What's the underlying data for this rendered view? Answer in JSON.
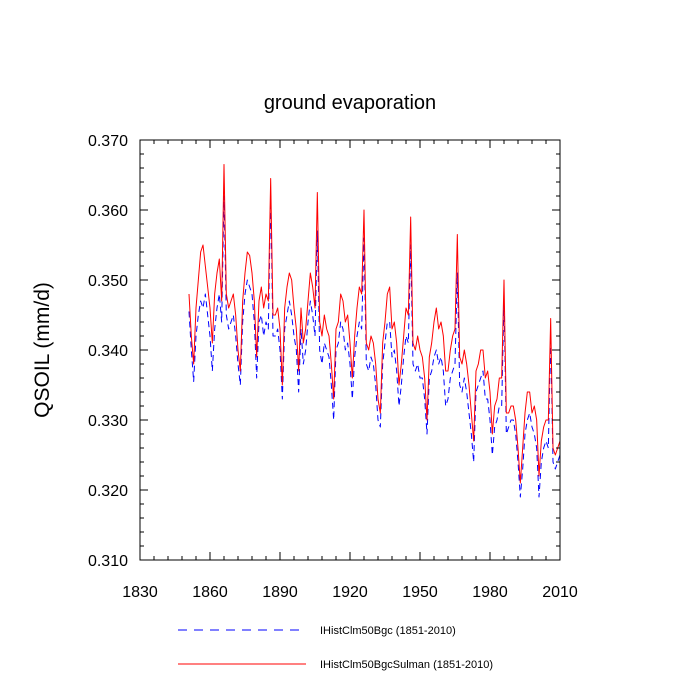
{
  "chart_data": {
    "type": "line",
    "title": "ground evaporation",
    "xlabel": "",
    "ylabel": "QSOIL  (mm/d)",
    "xlim": [
      1830,
      2010
    ],
    "ylim": [
      0.31,
      0.37
    ],
    "xticks": [
      1830,
      1860,
      1890,
      1920,
      1950,
      1980,
      2010
    ],
    "xtick_labels": [
      "1830",
      "1860",
      "1890",
      "1920",
      "1950",
      "1980",
      "2010"
    ],
    "yticks": [
      0.31,
      0.32,
      0.33,
      0.34,
      0.35,
      0.36,
      0.37
    ],
    "ytick_labels": [
      "0.310",
      "0.320",
      "0.330",
      "0.340",
      "0.350",
      "0.360",
      "0.370"
    ],
    "grid": false,
    "legend_position": "bottom",
    "series": [
      {
        "name": "IHistClm50Bgc (1851-2010)",
        "color": "#0000ff",
        "style": "dashed",
        "x": [
          1851,
          1852,
          1853,
          1854,
          1855,
          1856,
          1857,
          1858,
          1859,
          1860,
          1861,
          1862,
          1863,
          1864,
          1865,
          1866,
          1867,
          1868,
          1869,
          1870,
          1871,
          1872,
          1873,
          1874,
          1875,
          1876,
          1877,
          1878,
          1879,
          1880,
          1881,
          1882,
          1883,
          1884,
          1885,
          1886,
          1887,
          1888,
          1889,
          1890,
          1891,
          1892,
          1893,
          1894,
          1895,
          1896,
          1897,
          1898,
          1899,
          1900,
          1901,
          1902,
          1903,
          1904,
          1905,
          1906,
          1907,
          1908,
          1909,
          1910,
          1911,
          1912,
          1913,
          1914,
          1915,
          1916,
          1917,
          1918,
          1919,
          1920,
          1921,
          1922,
          1923,
          1924,
          1925,
          1926,
          1927,
          1928,
          1929,
          1930,
          1931,
          1932,
          1933,
          1934,
          1935,
          1936,
          1937,
          1938,
          1939,
          1940,
          1941,
          1942,
          1943,
          1944,
          1945,
          1946,
          1947,
          1948,
          1949,
          1950,
          1951,
          1952,
          1953,
          1954,
          1955,
          1956,
          1957,
          1958,
          1959,
          1960,
          1961,
          1962,
          1963,
          1964,
          1965,
          1966,
          1967,
          1968,
          1969,
          1970,
          1971,
          1972,
          1973,
          1974,
          1975,
          1976,
          1977,
          1978,
          1979,
          1980,
          1981,
          1982,
          1983,
          1984,
          1985,
          1986,
          1987,
          1988,
          1989,
          1990,
          1991,
          1992,
          1993,
          1994,
          1995,
          1996,
          1997,
          1998,
          1999,
          2000,
          2001,
          2002,
          2003,
          2004,
          2005,
          2006,
          2007,
          2008,
          2009,
          2010
        ],
        "values": [
          0.3455,
          0.34,
          0.3355,
          0.342,
          0.345,
          0.347,
          0.346,
          0.348,
          0.345,
          0.342,
          0.337,
          0.343,
          0.346,
          0.348,
          0.344,
          0.362,
          0.345,
          0.343,
          0.344,
          0.345,
          0.342,
          0.338,
          0.335,
          0.344,
          0.348,
          0.35,
          0.349,
          0.348,
          0.344,
          0.336,
          0.344,
          0.345,
          0.342,
          0.344,
          0.343,
          0.362,
          0.342,
          0.342,
          0.343,
          0.34,
          0.333,
          0.343,
          0.345,
          0.347,
          0.345,
          0.342,
          0.34,
          0.334,
          0.343,
          0.338,
          0.34,
          0.344,
          0.347,
          0.345,
          0.342,
          0.357,
          0.34,
          0.338,
          0.341,
          0.34,
          0.339,
          0.335,
          0.33,
          0.34,
          0.341,
          0.344,
          0.343,
          0.34,
          0.341,
          0.338,
          0.333,
          0.339,
          0.342,
          0.344,
          0.343,
          0.356,
          0.338,
          0.337,
          0.339,
          0.338,
          0.335,
          0.33,
          0.329,
          0.338,
          0.341,
          0.344,
          0.344,
          0.339,
          0.34,
          0.337,
          0.332,
          0.335,
          0.339,
          0.342,
          0.341,
          0.355,
          0.338,
          0.337,
          0.338,
          0.336,
          0.336,
          0.333,
          0.328,
          0.336,
          0.337,
          0.339,
          0.34,
          0.338,
          0.339,
          0.337,
          0.332,
          0.333,
          0.336,
          0.337,
          0.338,
          0.351,
          0.335,
          0.334,
          0.336,
          0.334,
          0.331,
          0.328,
          0.324,
          0.334,
          0.335,
          0.336,
          0.337,
          0.333,
          0.333,
          0.33,
          0.325,
          0.329,
          0.33,
          0.332,
          0.332,
          0.347,
          0.328,
          0.329,
          0.33,
          0.33,
          0.328,
          0.324,
          0.319,
          0.323,
          0.328,
          0.33,
          0.331,
          0.329,
          0.328,
          0.326,
          0.319,
          0.324,
          0.326,
          0.327,
          0.326,
          0.342,
          0.324,
          0.323,
          0.324,
          0.325
        ],
        "note": ""
      },
      {
        "name": "IHistClm50BgcSulman (1851-2010)",
        "color": "#ff0000",
        "style": "solid",
        "x": [
          1851,
          1852,
          1853,
          1854,
          1855,
          1856,
          1857,
          1858,
          1859,
          1860,
          1861,
          1862,
          1863,
          1864,
          1865,
          1866,
          1867,
          1868,
          1869,
          1870,
          1871,
          1872,
          1873,
          1874,
          1875,
          1876,
          1877,
          1878,
          1879,
          1880,
          1881,
          1882,
          1883,
          1884,
          1885,
          1886,
          1887,
          1888,
          1889,
          1890,
          1891,
          1892,
          1893,
          1894,
          1895,
          1896,
          1897,
          1898,
          1899,
          1900,
          1901,
          1902,
          1903,
          1904,
          1905,
          1906,
          1907,
          1908,
          1909,
          1910,
          1911,
          1912,
          1913,
          1914,
          1915,
          1916,
          1917,
          1918,
          1919,
          1920,
          1921,
          1922,
          1923,
          1924,
          1925,
          1926,
          1927,
          1928,
          1929,
          1930,
          1931,
          1932,
          1933,
          1934,
          1935,
          1936,
          1937,
          1938,
          1939,
          1940,
          1941,
          1942,
          1943,
          1944,
          1945,
          1946,
          1947,
          1948,
          1949,
          1950,
          1951,
          1952,
          1953,
          1954,
          1955,
          1956,
          1957,
          1958,
          1959,
          1960,
          1961,
          1962,
          1963,
          1964,
          1965,
          1966,
          1967,
          1968,
          1969,
          1970,
          1971,
          1972,
          1973,
          1974,
          1975,
          1976,
          1977,
          1978,
          1979,
          1980,
          1981,
          1982,
          1983,
          1984,
          1985,
          1986,
          1987,
          1988,
          1989,
          1990,
          1991,
          1992,
          1993,
          1994,
          1995,
          1996,
          1997,
          1998,
          1999,
          2000,
          2001,
          2002,
          2003,
          2004,
          2005,
          2006,
          2007,
          2008,
          2009,
          2010
        ],
        "values": [
          0.348,
          0.342,
          0.338,
          0.346,
          0.35,
          0.354,
          0.355,
          0.352,
          0.349,
          0.346,
          0.341,
          0.348,
          0.351,
          0.353,
          0.347,
          0.3665,
          0.348,
          0.346,
          0.347,
          0.348,
          0.345,
          0.34,
          0.337,
          0.347,
          0.351,
          0.354,
          0.3535,
          0.351,
          0.347,
          0.339,
          0.347,
          0.349,
          0.346,
          0.348,
          0.347,
          0.3645,
          0.345,
          0.345,
          0.346,
          0.343,
          0.335,
          0.346,
          0.349,
          0.351,
          0.35,
          0.346,
          0.343,
          0.337,
          0.346,
          0.341,
          0.343,
          0.347,
          0.351,
          0.349,
          0.346,
          0.3625,
          0.344,
          0.342,
          0.345,
          0.343,
          0.342,
          0.338,
          0.333,
          0.343,
          0.344,
          0.348,
          0.347,
          0.344,
          0.345,
          0.341,
          0.336,
          0.342,
          0.346,
          0.349,
          0.348,
          0.36,
          0.341,
          0.34,
          0.342,
          0.341,
          0.338,
          0.333,
          0.331,
          0.341,
          0.344,
          0.348,
          0.349,
          0.343,
          0.344,
          0.341,
          0.335,
          0.338,
          0.342,
          0.346,
          0.345,
          0.359,
          0.341,
          0.34,
          0.342,
          0.34,
          0.339,
          0.336,
          0.33,
          0.339,
          0.341,
          0.344,
          0.346,
          0.343,
          0.344,
          0.342,
          0.337,
          0.337,
          0.34,
          0.342,
          0.343,
          0.3565,
          0.339,
          0.338,
          0.34,
          0.338,
          0.335,
          0.331,
          0.327,
          0.337,
          0.338,
          0.34,
          0.34,
          0.336,
          0.337,
          0.334,
          0.328,
          0.332,
          0.333,
          0.336,
          0.336,
          0.35,
          0.331,
          0.331,
          0.332,
          0.332,
          0.33,
          0.326,
          0.321,
          0.326,
          0.331,
          0.334,
          0.334,
          0.331,
          0.332,
          0.33,
          0.322,
          0.327,
          0.329,
          0.33,
          0.33,
          0.3445,
          0.326,
          0.325,
          0.326,
          0.327
        ]
      }
    ]
  }
}
